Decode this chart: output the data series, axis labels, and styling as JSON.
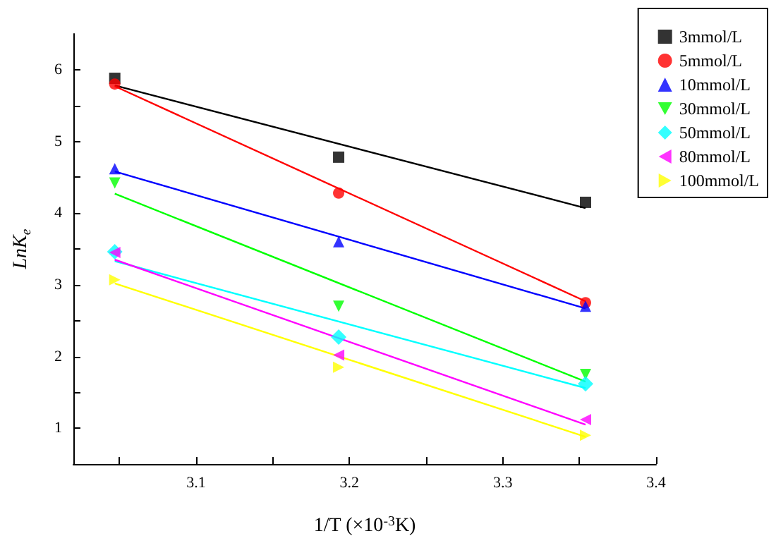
{
  "chart_data": {
    "type": "scatter",
    "xlabel": "1/T (×10$^{-3}$K)",
    "ylabel": "LnK$_{e}$",
    "xlim": [
      3.02,
      3.4
    ],
    "xticks": [
      {
        "value": 3.05,
        "label": null
      },
      3.1,
      {
        "value": 3.15,
        "label": null
      },
      3.2,
      {
        "value": 3.25,
        "label": null
      },
      3.3,
      {
        "value": 3.35,
        "label": null
      },
      3.4
    ],
    "ylim": [
      0.5,
      6.5
    ],
    "yticks": [
      1,
      {
        "value": 1.5,
        "label": null
      },
      2,
      {
        "value": 2.5,
        "label": null
      },
      3,
      {
        "value": 3.5,
        "label": null
      },
      4,
      {
        "value": 4.5,
        "label": null
      },
      5,
      {
        "value": 5.5,
        "label": null
      },
      6
    ],
    "x": [
      3.047,
      3.193,
      3.354
    ],
    "grid": false,
    "legend": "top right",
    "series": [
      {
        "name": "3mmol/L",
        "color": "#000000",
        "marker": "square",
        "values": [
          5.88,
          4.78,
          4.15
        ]
      },
      {
        "name": "5mmol/L",
        "color": "#ff0000",
        "marker": "circle",
        "values": [
          5.8,
          4.28,
          2.75
        ]
      },
      {
        "name": "10mmol/L",
        "color": "#0000ff",
        "marker": "triangle",
        "values": [
          4.62,
          3.6,
          2.7
        ]
      },
      {
        "name": "30mmol/L",
        "color": "#00ff00",
        "marker": "triangle-down",
        "values": [
          4.42,
          2.7,
          1.75
        ]
      },
      {
        "name": "50mmol/L",
        "color": "#00ffff",
        "marker": "diamond",
        "values": [
          3.46,
          2.27,
          1.62
        ]
      },
      {
        "name": "80mmol/L",
        "color": "#ff00ff",
        "marker": "triangle-left",
        "values": [
          3.45,
          2.02,
          1.12
        ]
      },
      {
        "name": "100mmol/L",
        "color": "#ffff00",
        "marker": "triangle-right",
        "values": [
          3.07,
          1.85,
          0.9
        ]
      },
      {
        "type": "line",
        "color": "#000000",
        "marker": "none",
        "values": [
          5.78,
          null,
          4.07
        ]
      },
      {
        "type": "line",
        "color": "#ff0000",
        "marker": "none",
        "values": [
          5.77,
          null,
          2.77
        ]
      },
      {
        "type": "line",
        "color": "#0000ff",
        "marker": "none",
        "values": [
          4.58,
          null,
          2.67
        ]
      },
      {
        "type": "line",
        "color": "#00ff00",
        "marker": "none",
        "values": [
          4.27,
          null,
          1.65
        ]
      },
      {
        "type": "line",
        "color": "#00ffff",
        "marker": "none",
        "values": [
          3.33,
          null,
          1.56
        ]
      },
      {
        "type": "line",
        "color": "#ff00ff",
        "marker": "none",
        "values": [
          3.35,
          null,
          1.05
        ]
      },
      {
        "type": "line",
        "color": "#ffff00",
        "marker": "none",
        "values": [
          3.02,
          null,
          0.88
        ]
      }
    ]
  }
}
